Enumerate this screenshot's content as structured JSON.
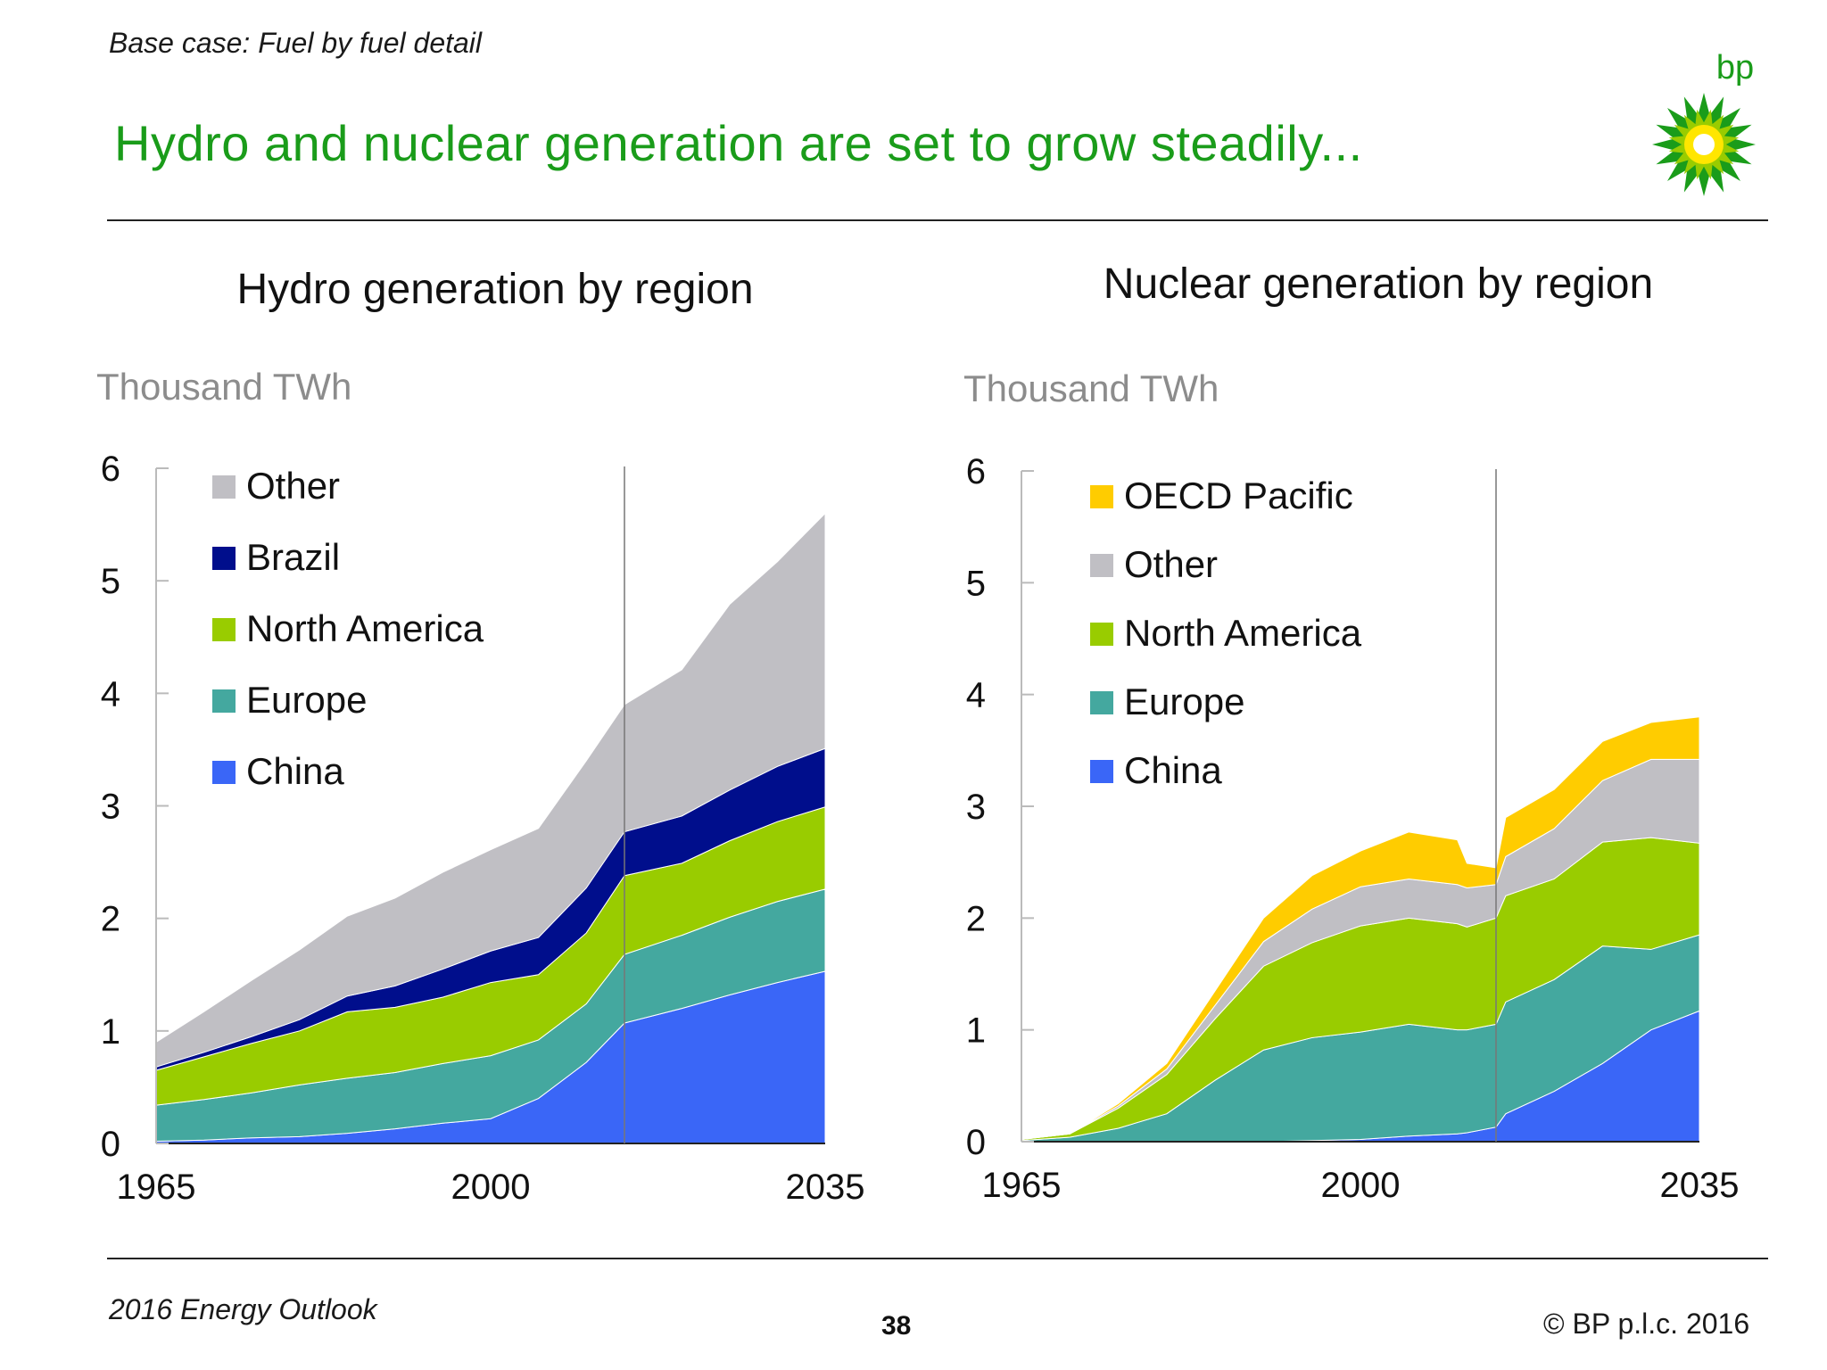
{
  "header": {
    "subtitle": "Base case: Fuel by fuel detail",
    "headline": "Hydro and nuclear generation are set to grow steadily..."
  },
  "logo": {
    "text": "bp",
    "icon": "bp-helios-logo-icon"
  },
  "footer": {
    "left": "2016 Energy Outlook",
    "page": "38",
    "right": "© BP p.l.c. 2016"
  },
  "colors": {
    "China": "#3a66f7",
    "Europe": "#44a89f",
    "North America": "#99cc00",
    "Brazil": "#000e8c",
    "Other": "#c0bfc4",
    "OECD Pacific": "#ffcc00",
    "headline": "#1a9c1a"
  },
  "chart_data": [
    {
      "type": "area",
      "stacked": true,
      "title": "Hydro generation by region",
      "ylabel": "Thousand TWh",
      "ylim": [
        0,
        6
      ],
      "yticks": [
        0,
        1,
        2,
        3,
        4,
        5,
        6
      ],
      "xticks": [
        1965,
        2000,
        2035
      ],
      "xlim": [
        1965,
        2035
      ],
      "projection_start": 2014,
      "legend": "top-left",
      "x": [
        1965,
        1970,
        1975,
        1980,
        1985,
        1990,
        1995,
        2000,
        2005,
        2010,
        2014,
        2020,
        2025,
        2030,
        2035
      ],
      "series": [
        {
          "name": "China",
          "values": [
            0.02,
            0.03,
            0.05,
            0.06,
            0.09,
            0.13,
            0.18,
            0.22,
            0.4,
            0.72,
            1.07,
            1.2,
            1.32,
            1.43,
            1.53
          ]
        },
        {
          "name": "Europe",
          "values": [
            0.32,
            0.36,
            0.4,
            0.46,
            0.49,
            0.5,
            0.53,
            0.56,
            0.52,
            0.52,
            0.61,
            0.65,
            0.69,
            0.72,
            0.73
          ]
        },
        {
          "name": "North America",
          "values": [
            0.31,
            0.38,
            0.44,
            0.48,
            0.59,
            0.58,
            0.59,
            0.65,
            0.58,
            0.63,
            0.7,
            0.64,
            0.68,
            0.71,
            0.73
          ]
        },
        {
          "name": "Brazil",
          "values": [
            0.03,
            0.04,
            0.06,
            0.1,
            0.14,
            0.19,
            0.25,
            0.28,
            0.33,
            0.4,
            0.39,
            0.42,
            0.45,
            0.49,
            0.52
          ]
        },
        {
          "name": "Other",
          "values": [
            0.22,
            0.36,
            0.5,
            0.62,
            0.71,
            0.78,
            0.86,
            0.9,
            0.97,
            1.13,
            1.13,
            1.3,
            1.65,
            1.82,
            2.09
          ]
        }
      ]
    },
    {
      "type": "area",
      "stacked": true,
      "title": "Nuclear generation by region",
      "ylabel": "Thousand TWh",
      "ylim": [
        0,
        6
      ],
      "yticks": [
        0,
        1,
        2,
        3,
        4,
        5,
        6
      ],
      "xticks": [
        1965,
        2000,
        2035
      ],
      "xlim": [
        1965,
        2035
      ],
      "projection_start": 2014,
      "legend": "top-left",
      "x": [
        1965,
        1970,
        1975,
        1980,
        1985,
        1990,
        1995,
        2000,
        2005,
        2010,
        2011,
        2014,
        2015,
        2020,
        2025,
        2030,
        2035
      ],
      "series": [
        {
          "name": "China",
          "values": [
            0,
            0,
            0,
            0,
            0,
            0,
            0.01,
            0.02,
            0.05,
            0.07,
            0.08,
            0.13,
            0.25,
            0.45,
            0.7,
            1.0,
            1.17
          ]
        },
        {
          "name": "Europe",
          "values": [
            0.01,
            0.04,
            0.12,
            0.25,
            0.55,
            0.82,
            0.92,
            0.96,
            1.0,
            0.93,
            0.92,
            0.92,
            1.0,
            1.0,
            1.05,
            0.72,
            0.68
          ]
        },
        {
          "name": "North America",
          "values": [
            0.01,
            0.03,
            0.18,
            0.35,
            0.55,
            0.75,
            0.85,
            0.95,
            0.95,
            0.95,
            0.92,
            0.95,
            0.95,
            0.9,
            0.93,
            1.0,
            0.82
          ]
        },
        {
          "name": "Other",
          "values": [
            0,
            0,
            0.02,
            0.05,
            0.12,
            0.22,
            0.3,
            0.35,
            0.35,
            0.35,
            0.35,
            0.3,
            0.35,
            0.45,
            0.55,
            0.7,
            0.75
          ]
        },
        {
          "name": "OECD Pacific",
          "values": [
            0,
            0,
            0.02,
            0.05,
            0.13,
            0.21,
            0.3,
            0.32,
            0.42,
            0.4,
            0.22,
            0.15,
            0.35,
            0.35,
            0.35,
            0.33,
            0.38
          ]
        }
      ]
    }
  ]
}
